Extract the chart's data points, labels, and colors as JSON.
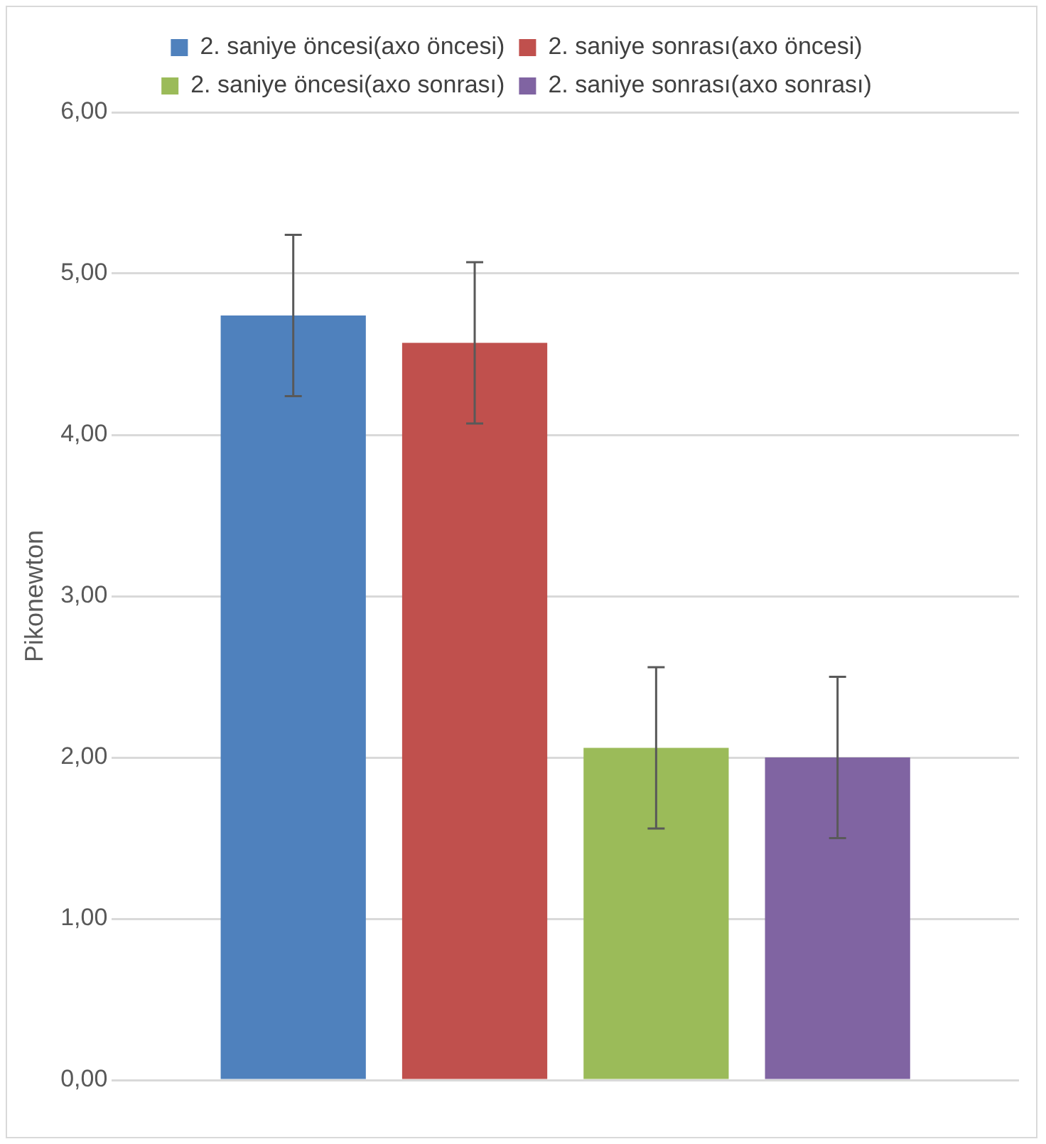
{
  "chart_data": {
    "type": "bar",
    "ylabel": "Pikonewton",
    "categories": [
      null
    ],
    "series": [
      {
        "name": "2. saniye öncesi(axo öncesi)",
        "color": "#4f81bd",
        "values": [
          4.74
        ],
        "errors": [
          0.5
        ]
      },
      {
        "name": "2. saniye sonrası(axo öncesi)",
        "color": "#c0504d",
        "values": [
          4.57
        ],
        "errors": [
          0.5
        ]
      },
      {
        "name": "2. saniye öncesi(axo sonrası)",
        "color": "#9bbb59",
        "values": [
          2.06
        ],
        "errors": [
          0.5
        ]
      },
      {
        "name": "2. saniye sonrası(axo sonrası)",
        "color": "#8064a2",
        "values": [
          2.0
        ],
        "errors": [
          0.5
        ]
      }
    ],
    "ylim": [
      0,
      6
    ],
    "yticks": [
      {
        "value": 0,
        "label": "0,00"
      },
      {
        "value": 1,
        "label": "1,00"
      },
      {
        "value": 2,
        "label": "2,00"
      },
      {
        "value": 3,
        "label": "3,00"
      },
      {
        "value": 4,
        "label": "4,00"
      },
      {
        "value": 5,
        "label": "5,00"
      },
      {
        "value": 6,
        "label": "6,00"
      }
    ],
    "grid": "y",
    "legend": "top"
  }
}
